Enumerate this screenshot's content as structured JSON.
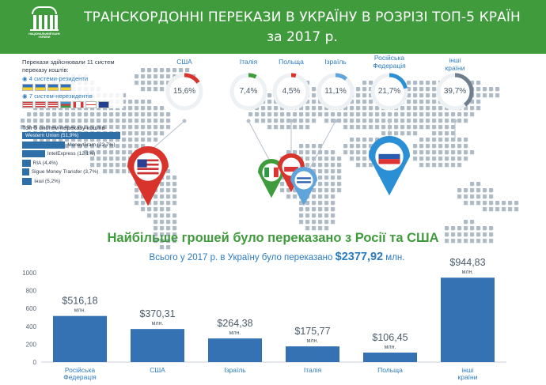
{
  "header": {
    "title_line1": "ТРАНСКОРДОННІ ПЕРЕКАЗИ  В УКРАЇНУ В РОЗРІЗІ ТОП-5 КРАЇН",
    "title_line2": "за 2017 р.",
    "logo_text": "НАЦІОНАЛЬНИЙ БАНК УКРАЇНИ",
    "bg_color": "#3f9b3c"
  },
  "info": {
    "header": "Перекази здійснювали 11 систем переказу коштів:",
    "residents": "◉ 4 системи-резиденти",
    "nonresidents": "◉ 7 систем-нерезидентів",
    "systems_title": "Топ-5 систем переказу коштів",
    "systems": [
      {
        "label": "Western Union (51,9%)",
        "share": 51.9
      },
      {
        "label": "MoneyGram (22,7%)",
        "share": 22.7
      },
      {
        "label": "IntelExpress (12,1%)",
        "share": 12.1
      },
      {
        "label": "RIA (4,4%)",
        "share": 4.4
      },
      {
        "label": "Sigue Money Transfer (3,7%)",
        "share": 3.7
      },
      {
        "label": "інші (5,2%)",
        "share": 5.2
      }
    ]
  },
  "donuts": [
    {
      "name": "США",
      "value_label": "15,6%",
      "share": 15.6,
      "color": "#d9342b"
    },
    {
      "name": "Італія",
      "value_label": "7,4%",
      "share": 7.4,
      "color": "#3f9b3c"
    },
    {
      "name": "Польща",
      "value_label": "4,5%",
      "share": 4.5,
      "color": "#d9342b"
    },
    {
      "name": "Ізраїль",
      "value_label": "11,1%",
      "share": 11.1,
      "color": "#5fa5dc"
    },
    {
      "name": "Російська Федерація",
      "value_label": "21,7%",
      "share": 21.7,
      "color": "#2b8fd6"
    },
    {
      "name": "інші країни",
      "value_label": "39,7%",
      "share": 39.7,
      "color": "#6f7f8f"
    }
  ],
  "headline": "Найбільше грошей було переказано з Росії та США",
  "subline": {
    "prefix": "Всього у 2017 р. в Україну було переказано ",
    "amount": "$2377,92",
    "suffix": " млн."
  },
  "chart_data": {
    "type": "bar",
    "categories": [
      "Російська Федерація",
      "США",
      "Ізраїль",
      "Італія",
      "Польща",
      "інші країни"
    ],
    "values": [
      516.18,
      370.31,
      264.38,
      175.77,
      106.45,
      944.83
    ],
    "value_labels": [
      "$516,18",
      "$370,31",
      "$264,38",
      "$175,77",
      "$106,45",
      "$944,83"
    ],
    "unit_label": "млн.",
    "ylim": [
      0,
      1000
    ],
    "yticks": [
      0,
      200,
      400,
      600,
      800,
      1000
    ],
    "grid": false,
    "bar_color": "#3472b4",
    "title": "",
    "xlabel": "",
    "ylabel": ""
  }
}
